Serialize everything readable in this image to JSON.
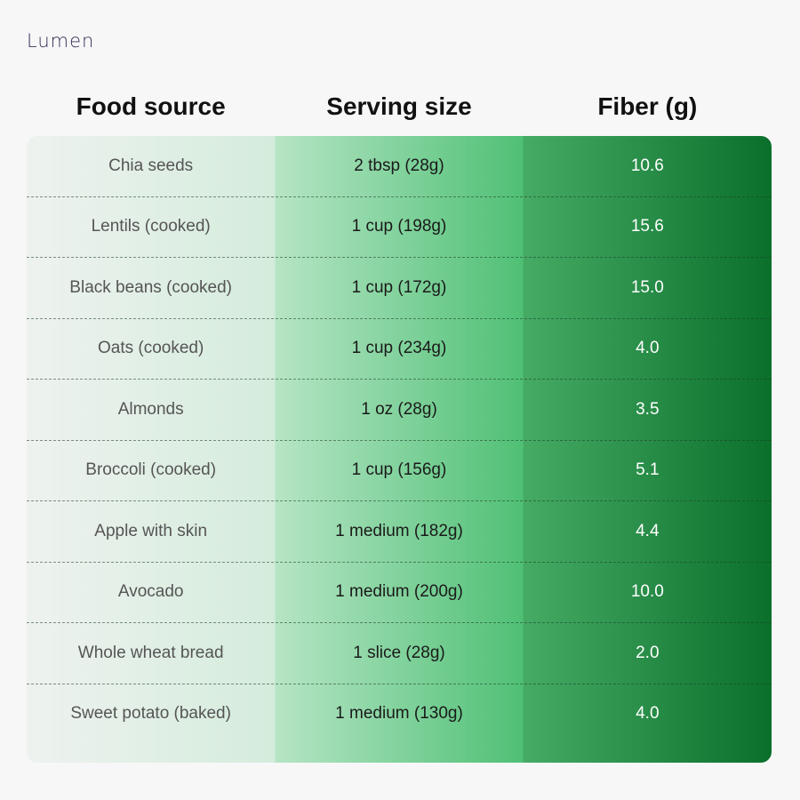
{
  "brand": {
    "logo_text": "Lumen"
  },
  "chart_data": {
    "type": "table",
    "columns": [
      "Food source",
      "Serving size",
      "Fiber (g)"
    ],
    "rows": [
      [
        "Chia seeds",
        "2 tbsp (28g)",
        "10.6"
      ],
      [
        "Lentils (cooked)",
        "1 cup (198g)",
        "15.6"
      ],
      [
        "Black beans (cooked)",
        "1 cup (172g)",
        "15.0"
      ],
      [
        "Oats (cooked)",
        "1 cup (234g)",
        "4.0"
      ],
      [
        "Almonds",
        "1 oz (28g)",
        "3.5"
      ],
      [
        "Broccoli (cooked)",
        "1 cup (156g)",
        "5.1"
      ],
      [
        "Apple with skin",
        "1 medium (182g)",
        "4.4"
      ],
      [
        "Avocado",
        "1 medium (200g)",
        "10.0"
      ],
      [
        "Whole wheat bread",
        "1 slice (28g)",
        "2.0"
      ],
      [
        "Sweet potato (baked)",
        "1 medium (130g)",
        "4.0"
      ]
    ]
  },
  "colors": {
    "accent_dark_green": "#0a6f2a",
    "accent_mid_green": "#4fc075",
    "light_mint": "#d4ecdc"
  }
}
